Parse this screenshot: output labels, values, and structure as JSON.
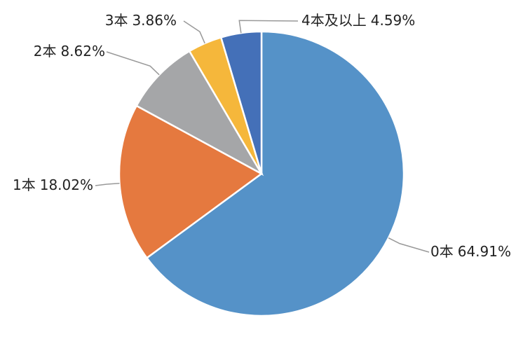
{
  "chart_data": {
    "type": "pie",
    "categories": [
      "0本",
      "1本",
      "2本",
      "3本",
      "4本及以上"
    ],
    "values": [
      64.91,
      18.02,
      8.62,
      3.86,
      4.59
    ],
    "value_labels": [
      "64.91%",
      "18.02%",
      "8.62%",
      "3.86%",
      "4.59%"
    ],
    "colors": [
      "#5592c8",
      "#e5793f",
      "#a5a6a8",
      "#f5b73b",
      "#4470b8"
    ]
  }
}
